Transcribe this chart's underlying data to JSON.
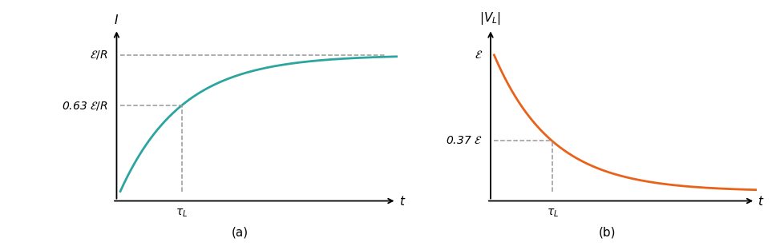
{
  "fig_width": 9.73,
  "fig_height": 3.13,
  "dpi": 100,
  "panel_a": {
    "curve_color": "#2ca4a0",
    "curve_linewidth": 2.0,
    "tau": 1.0,
    "t_max": 4.5,
    "y_asymptote_label": "$\\mathcal{E}/R$",
    "y_tau_label": "0.63 $\\mathcal{E}/R$",
    "x_tau_label": "$\\tau_L$",
    "xlabel": "$t$",
    "ylabel": "$I$",
    "dashed_color": "#999999",
    "dashed_lw": 1.1,
    "label_fontsize": 10,
    "axis_label_fontsize": 11,
    "panel_label": "(a)",
    "panel_label_fontsize": 11
  },
  "panel_b": {
    "curve_color": "#e8621a",
    "curve_linewidth": 2.0,
    "tau": 1.0,
    "t_max": 4.5,
    "y_start_label": "$\\mathcal{E}$",
    "y_tau_label": "0.37 $\\mathcal{E}$",
    "x_tau_label": "$\\tau_L$",
    "xlabel": "$t$",
    "ylabel": "$|\\mathit{V}_L|$",
    "dashed_color": "#999999",
    "dashed_lw": 1.1,
    "label_fontsize": 10,
    "axis_label_fontsize": 11,
    "panel_label": "(b)",
    "panel_label_fontsize": 11
  }
}
